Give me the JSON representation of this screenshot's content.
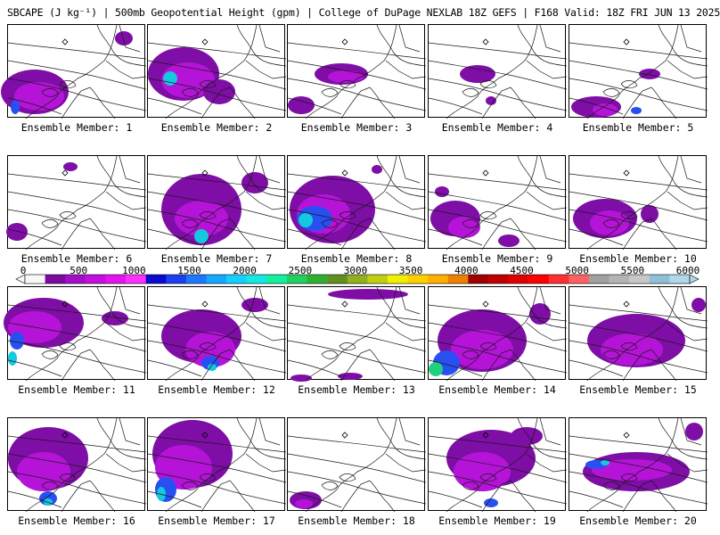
{
  "header": {
    "title": "SBCAPE (J kg⁻¹) | 500mb Geopotential Height (gpm) | College of DuPage NEXLAB 18Z GEFS | F168 Valid: 18Z FRI JUN 13 2025"
  },
  "panel_label_prefix": "Ensemble Member: ",
  "members": [
    "1",
    "2",
    "3",
    "4",
    "5",
    "6",
    "7",
    "8",
    "9",
    "10",
    "11",
    "12",
    "13",
    "14",
    "15",
    "16",
    "17",
    "18",
    "19",
    "20"
  ],
  "colorbar": {
    "ticks": [
      "0",
      "500",
      "1000",
      "1500",
      "2000",
      "2500",
      "3000",
      "3500",
      "4000",
      "4500",
      "5000",
      "5500",
      "6000"
    ],
    "colors": [
      "#f8f8f8",
      "#7a0aa0",
      "#a30fc8",
      "#c40fe0",
      "#e314f0",
      "#ff30ff",
      "#0a0ad0",
      "#1a40f0",
      "#1e78ff",
      "#14a8ff",
      "#14d0ff",
      "#14e8e0",
      "#14f0a0",
      "#20d060",
      "#30b030",
      "#609020",
      "#90b020",
      "#c0d010",
      "#f0f000",
      "#ffd000",
      "#ffb000",
      "#f08000",
      "#a00000",
      "#c00000",
      "#e00000",
      "#ff0000",
      "#ff3030",
      "#ff6060",
      "#a0a0a0",
      "#b4b4b4",
      "#c8c8c8",
      "#90c0d8",
      "#b0d8e8"
    ]
  },
  "colors": {
    "low_cape": "#7e0ea6",
    "mid_cape": "#b514d8",
    "high_cape": "#ff30ff",
    "blue_cape": "#2850f0",
    "cyan_cape": "#14c8e0",
    "green_cape": "#20d080"
  }
}
